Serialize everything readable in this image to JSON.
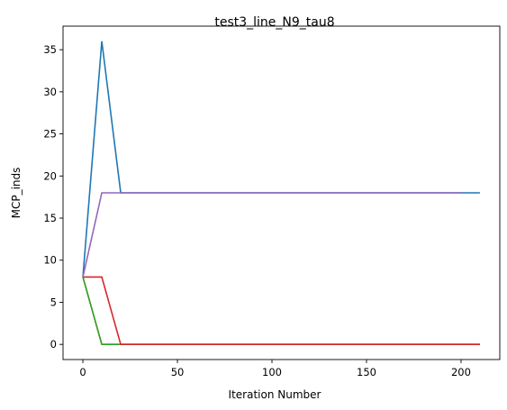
{
  "chart_data": {
    "type": "line",
    "title": "test3_line_N9_tau8",
    "xlabel": "Iteration Number",
    "ylabel": "MCP_inds",
    "xlim": [
      -10.5,
      220.5
    ],
    "ylim": [
      -1.8,
      37.8
    ],
    "xticks": [
      0,
      50,
      100,
      150,
      200
    ],
    "yticks": [
      0,
      5,
      10,
      15,
      20,
      25,
      30,
      35
    ],
    "grid": false,
    "legend": "none",
    "series": [
      {
        "color": "#1f77b4",
        "x": [
          0,
          10,
          20,
          30,
          200,
          210
        ],
        "y": [
          8,
          36,
          18,
          18,
          18,
          18
        ]
      },
      {
        "color": "#ff7f0e",
        "x": [
          0,
          10,
          20,
          200,
          210
        ],
        "y": [
          8,
          0,
          0,
          0,
          0
        ]
      },
      {
        "color": "#2ca02c",
        "x": [
          0,
          10,
          20,
          200,
          210
        ],
        "y": [
          8,
          0,
          0,
          0,
          0
        ]
      },
      {
        "color": "#d62728",
        "x": [
          0,
          10,
          20,
          200,
          210
        ],
        "y": [
          8,
          8,
          0,
          0,
          0
        ]
      },
      {
        "color": "#9467bd",
        "x": [
          0,
          10,
          20,
          200
        ],
        "y": [
          8,
          18,
          18,
          18
        ]
      }
    ]
  }
}
